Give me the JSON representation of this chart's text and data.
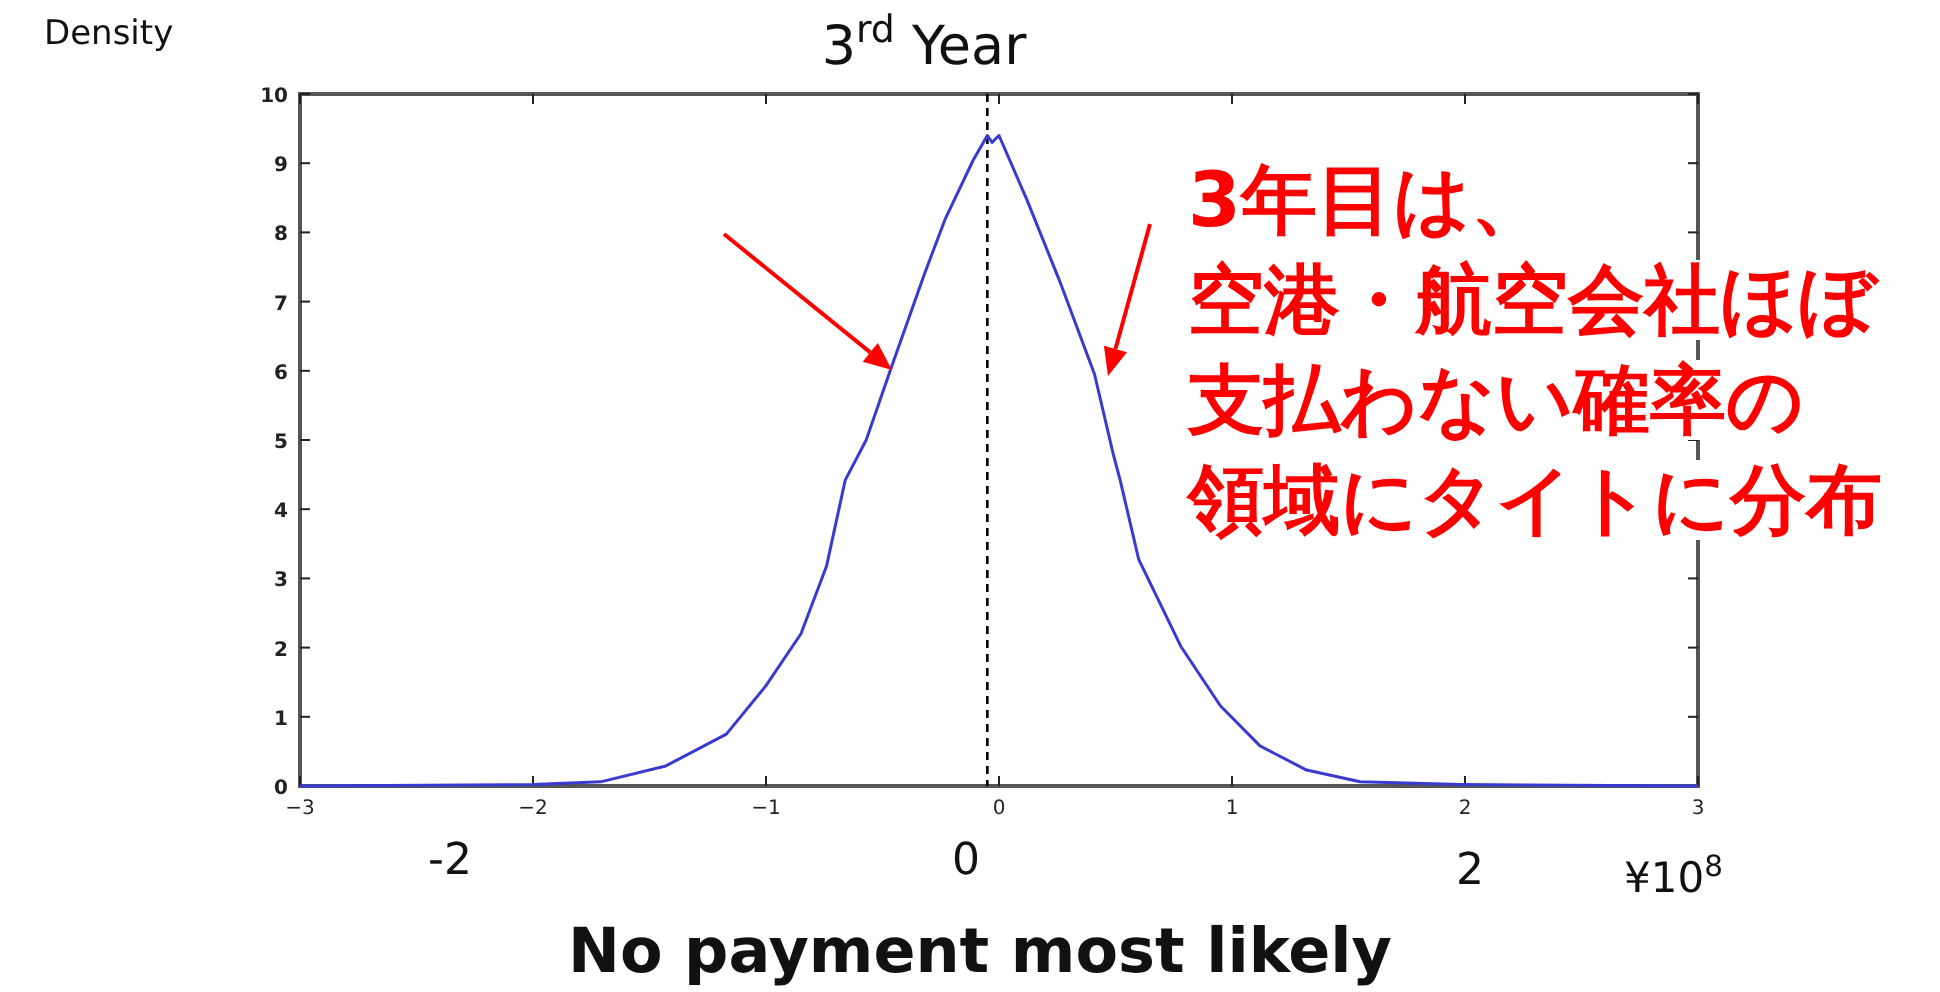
{
  "chart_data": {
    "type": "line",
    "title": "3$^{rd}$ Year",
    "ylabel": "Density",
    "xlabel": "¥10$^{8}$",
    "x": [
      -3,
      -2.0,
      -1.71,
      -1.43,
      -1.17,
      -1.0,
      -0.85,
      -0.74,
      -0.66,
      -0.57,
      -0.46,
      -0.32,
      -0.23,
      -0.11,
      -0.05,
      -0.03,
      0.0,
      0.12,
      0.26,
      0.41,
      0.49,
      0.52,
      0.6,
      0.78,
      0.95,
      1.12,
      1.32,
      1.55,
      1.98,
      3
    ],
    "series": [
      {
        "color": "#3a3ad0",
        "values": [
          0,
          0.02,
          0.06,
          0.29,
          0.75,
          1.45,
          2.2,
          3.18,
          4.42,
          5.0,
          6.07,
          7.4,
          8.2,
          9.05,
          9.4,
          9.3,
          9.4,
          8.47,
          7.3,
          5.95,
          4.8,
          4.42,
          3.27,
          2.02,
          1.16,
          0.58,
          0.23,
          0.06,
          0.02,
          0
        ]
      }
    ],
    "xlim": [
      -3,
      3
    ],
    "ylim": [
      0,
      10
    ],
    "xticks": [
      -3,
      -2,
      -1,
      0,
      1,
      2,
      3
    ],
    "yticks": [
      0,
      1,
      2,
      3,
      4,
      5,
      6,
      7,
      8,
      9,
      10
    ],
    "ref_lines": [
      {
        "axis": "x",
        "value": -0.05,
        "color": "#000000",
        "line_style": "dashed"
      }
    ],
    "grid": false,
    "marker": "none",
    "line_style": "solid",
    "annotations": [
      "3年目は、",
      "空港・航空会社ほぼ",
      "支払わない確率の",
      "領域にタイトに分布",
      "No payment most likely",
      "-2",
      "0",
      "2"
    ]
  }
}
